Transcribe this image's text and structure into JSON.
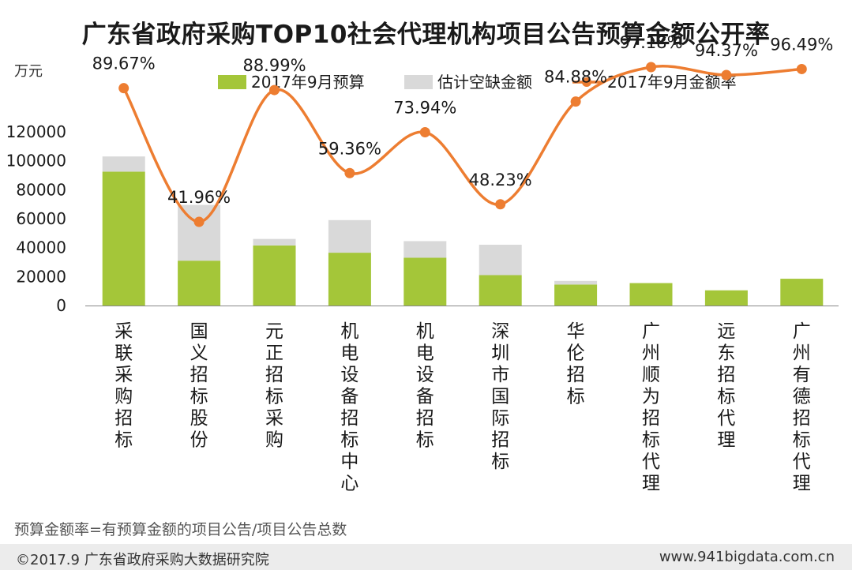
{
  "chart_data": {
    "type": "bar",
    "title": "广东省政府采购TOP10社会代理机构项目公告预算金额公开率",
    "ylabel": "万元",
    "ylim": [
      0,
      120000
    ],
    "yticks": [
      0,
      20000,
      40000,
      60000,
      80000,
      100000,
      120000
    ],
    "categories": [
      "采联采购招标",
      "国义招标股份",
      "元正招标采购",
      "机电设备招标中心",
      "机电设备招标",
      "深圳市国际招标",
      "华伦招标",
      "广州顺为招标代理",
      "远东招标代理",
      "广州有德招标代理"
    ],
    "series": [
      {
        "name": "2017年9月预算",
        "kind": "bar",
        "stack": "main",
        "color": "#a4c639",
        "values": [
          92500,
          31000,
          41500,
          36500,
          33000,
          21000,
          14500,
          15500,
          10500,
          18500
        ]
      },
      {
        "name": "估计空缺金额",
        "kind": "bar",
        "stack": "main",
        "color": "#d9d9d9",
        "values": [
          10500,
          38500,
          4500,
          22500,
          11500,
          21000,
          2500,
          0,
          0,
          0
        ]
      },
      {
        "name": "2017年9月金额率",
        "kind": "line",
        "color": "#ed7d31",
        "values": [
          89.67,
          41.96,
          88.99,
          59.36,
          73.94,
          48.23,
          84.88,
          97.18,
          94.37,
          96.49
        ],
        "labels": [
          "89.67%",
          "41.96%",
          "88.99%",
          "59.36%",
          "73.94%",
          "48.23%",
          "84.88%",
          "97.18%",
          "94.37%",
          "96.49%"
        ]
      }
    ],
    "legend": [
      "2017年9月预算",
      "估计空缺金额",
      "2017年9月金额率"
    ]
  },
  "footnote": "预算金额率=有预算金额的项目公告/项目公告总数",
  "copyright": "©2017.9 广东省政府采购大数据研究院",
  "website": "www.941bigdata.com.cn"
}
